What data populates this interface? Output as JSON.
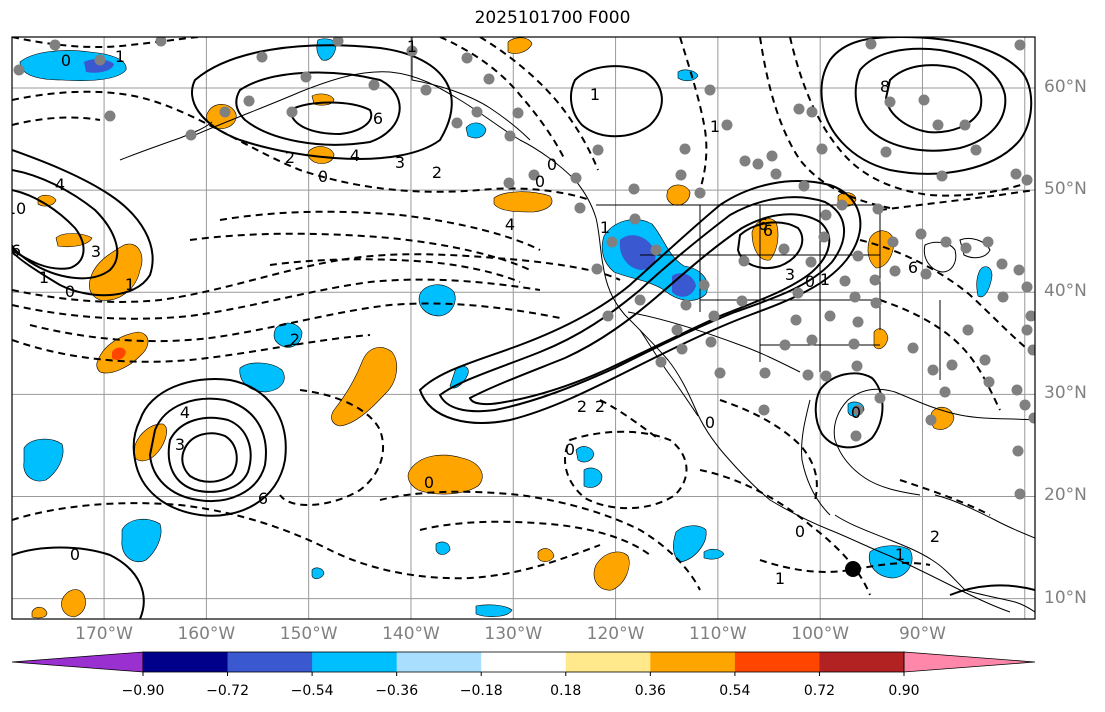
{
  "title": "2025101700 F000",
  "map": {
    "extent": {
      "lon": [
        -179,
        -79
      ],
      "lat": [
        8,
        65
      ]
    },
    "grid_lons": [
      -170,
      -160,
      -150,
      -140,
      -130,
      -120,
      -110,
      -100,
      -90,
      -80
    ],
    "grid_lats": [
      10,
      20,
      30,
      40,
      50,
      60
    ],
    "lon_labels": [
      "170°W",
      "160°W",
      "150°W",
      "140°W",
      "130°W",
      "120°W",
      "110°W",
      "100°W",
      "90°W"
    ],
    "lat_labels": [
      "10°N",
      "20°N",
      "30°N",
      "40°N",
      "50°N",
      "60°N"
    ],
    "contour_labels": [
      "0",
      "1",
      "6",
      "4",
      "3",
      "2",
      "2",
      "0",
      "1",
      "10",
      "4",
      "6",
      "3",
      "1",
      "0",
      "1",
      "2",
      "3",
      "4",
      "6",
      "0",
      "2",
      "2",
      "4",
      "6",
      "1",
      "0",
      "0",
      "0",
      "1",
      "0",
      "0",
      "0",
      "1",
      "1",
      "6",
      "0",
      "2",
      "1",
      "0",
      "1",
      "6",
      "8",
      "3"
    ]
  },
  "colorbar": {
    "ticks": [
      "−0.90",
      "−0.72",
      "−0.54",
      "−0.36",
      "−0.18",
      "0.18",
      "0.36",
      "0.54",
      "0.72",
      "0.90"
    ],
    "under_color": "#9b30d0",
    "over_color": "#ff88aa",
    "colors": [
      "#00008b",
      "#3a58d0",
      "#00bfff",
      "#aadeff",
      "#ffffff",
      "#ffe98a",
      "#ffa500",
      "#ff4500",
      "#b22222"
    ]
  },
  "colors": {
    "positive_anomaly": "#ffa500",
    "negative_anomaly": "#00bfff",
    "marker": "#808080"
  }
}
